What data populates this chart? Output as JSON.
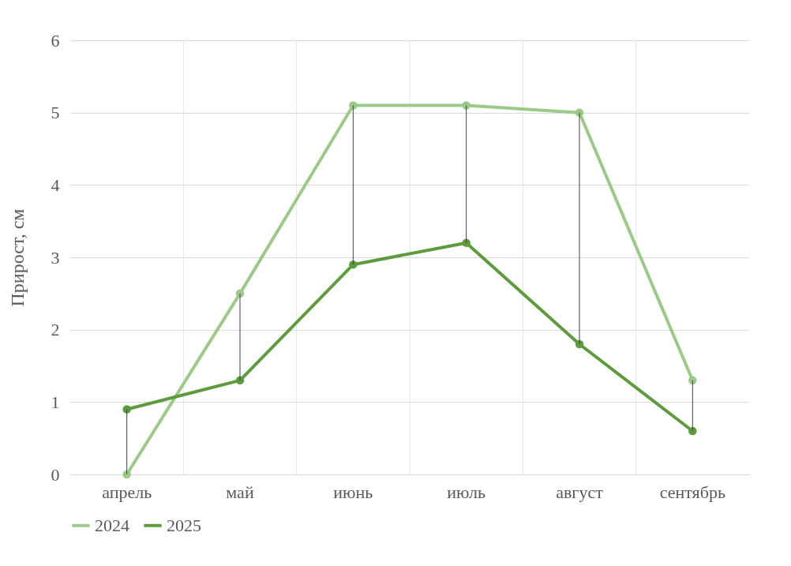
{
  "chart_data": {
    "type": "line",
    "ylabel": "Прирост, см",
    "categories": [
      "апрель",
      "май",
      "июнь",
      "июль",
      "август",
      "сентябрь"
    ],
    "series": [
      {
        "name": "2024",
        "color": "#9cc98a",
        "values": [
          0,
          2.5,
          5.1,
          5.1,
          5.0,
          1.3
        ]
      },
      {
        "name": "2025",
        "color": "#5e9b3f",
        "values": [
          0.9,
          1.3,
          2.9,
          3.2,
          1.8,
          0.6
        ],
        "errors": [
          [
            0,
            0.9
          ],
          [
            1.3,
            2.5
          ],
          [
            2.9,
            5.1
          ],
          [
            3.2,
            5.1
          ],
          [
            1.8,
            5.0
          ],
          [
            0.6,
            1.3
          ]
        ]
      }
    ],
    "ylim": [
      0,
      6
    ],
    "yticks": [
      0,
      1,
      2,
      3,
      4,
      5,
      6
    ],
    "grid": true,
    "legend": "bottom",
    "marker": "circle",
    "line_style": "solid"
  }
}
